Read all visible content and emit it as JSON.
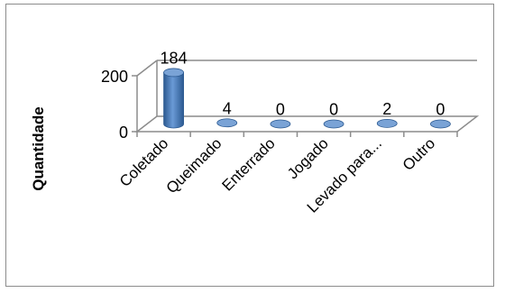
{
  "chart_data": {
    "type": "bar",
    "style": "3d-cylinder",
    "categories": [
      "Coletado",
      "Queimado",
      "Enterrado",
      "Jogado",
      "Levado para...",
      "Outro"
    ],
    "values": [
      184,
      4,
      0,
      0,
      2,
      0
    ],
    "data_labels": [
      "184",
      "4",
      "0",
      "0",
      "2",
      "0"
    ],
    "ylabel": "Quantidade",
    "yticks": [
      "0",
      "200"
    ],
    "ylim": [
      0,
      200
    ],
    "grid": true,
    "legend": "none",
    "colors": {
      "bar_fill": "#4f81bd",
      "bar_dark": "#2c5a91",
      "bar_top": "#7aa3d6",
      "axis": "#8c8c8c"
    }
  }
}
